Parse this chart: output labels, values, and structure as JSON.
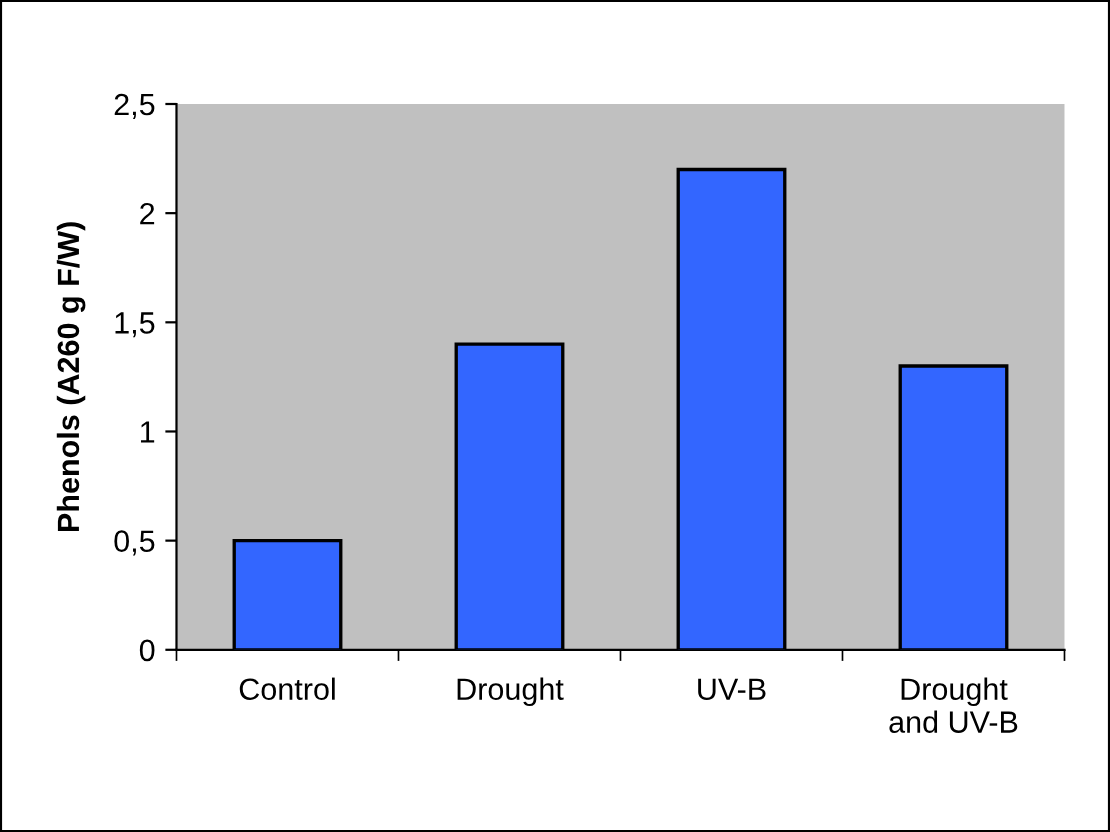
{
  "chart_data": {
    "type": "bar",
    "ylabel": "Phenols (A260 g F/W)",
    "categories": [
      "Control",
      "Drought",
      "UV-B",
      "Drought\nand UV-B"
    ],
    "values": [
      0.5,
      1.4,
      2.2,
      1.3
    ],
    "color": "#3366ff",
    "ylim": [
      0,
      2.5
    ],
    "yticks": [
      0,
      {
        "value": 0.5,
        "label": "0,5"
      },
      1,
      {
        "value": 1.5,
        "label": "1,5"
      },
      2,
      {
        "value": 2.5,
        "label": "2,5"
      }
    ],
    "grid": false,
    "legend": false
  }
}
